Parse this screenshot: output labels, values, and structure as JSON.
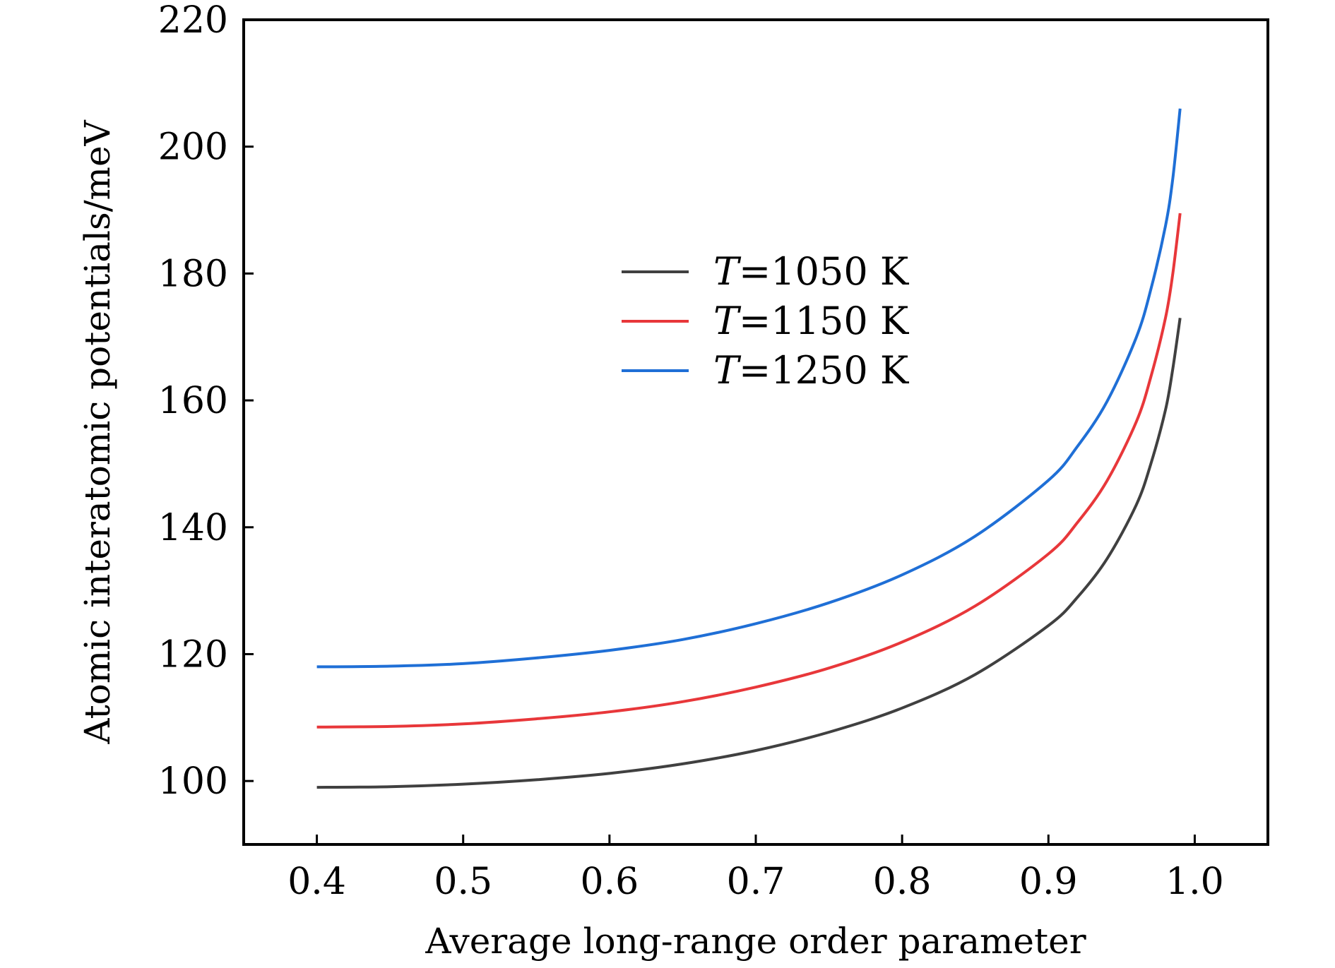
{
  "chart_data": {
    "type": "line",
    "title": "",
    "xlabel": "Average long-range order parameter",
    "ylabel": "Atomic interatomic potentials/meV",
    "xlim": [
      0.35,
      1.05
    ],
    "ylim": [
      90,
      220
    ],
    "xticks": [
      0.4,
      0.5,
      0.6,
      0.7,
      0.8,
      0.9,
      1.0
    ],
    "xtick_labels": [
      "0.4",
      "0.5",
      "0.6",
      "0.7",
      "0.8",
      "0.9",
      "1.0"
    ],
    "yticks": [
      100,
      120,
      140,
      160,
      180,
      200,
      220
    ],
    "ytick_labels": [
      "100",
      "120",
      "140",
      "160",
      "180",
      "200",
      "220"
    ],
    "grid": false,
    "legend_position": "center",
    "x": [
      0.4,
      0.45,
      0.5,
      0.55,
      0.6,
      0.65,
      0.7,
      0.75,
      0.8,
      0.85,
      0.9,
      0.92,
      0.94,
      0.96,
      0.97,
      0.98,
      0.985,
      0.99
    ],
    "series": [
      {
        "name": "1050",
        "label_var": "T",
        "label_eq": "=",
        "label_num": "1050 K",
        "color": "#404040",
        "values": [
          99.0,
          99.1,
          99.5,
          100.2,
          101.2,
          102.7,
          104.8,
          107.7,
          111.5,
          116.8,
          124.5,
          129.0,
          135.0,
          143.5,
          150.0,
          158.5,
          165.0,
          173.0
        ]
      },
      {
        "name": "1150",
        "label_var": "T",
        "label_eq": "=",
        "label_num": "1150 K",
        "color": "#e8373a",
        "values": [
          108.5,
          108.6,
          109.0,
          109.8,
          110.9,
          112.5,
          114.8,
          117.8,
          121.9,
          127.6,
          135.8,
          140.8,
          147.3,
          156.6,
          163.7,
          173.0,
          180.0,
          189.5
        ]
      },
      {
        "name": "1250",
        "label_var": "T",
        "label_eq": "=",
        "label_num": "1250 K",
        "color": "#1f6fd6",
        "values": [
          118.0,
          118.1,
          118.5,
          119.4,
          120.6,
          122.3,
          124.8,
          128.1,
          132.5,
          138.6,
          147.4,
          152.8,
          159.8,
          169.9,
          177.5,
          187.5,
          195.0,
          206.0
        ]
      }
    ]
  }
}
